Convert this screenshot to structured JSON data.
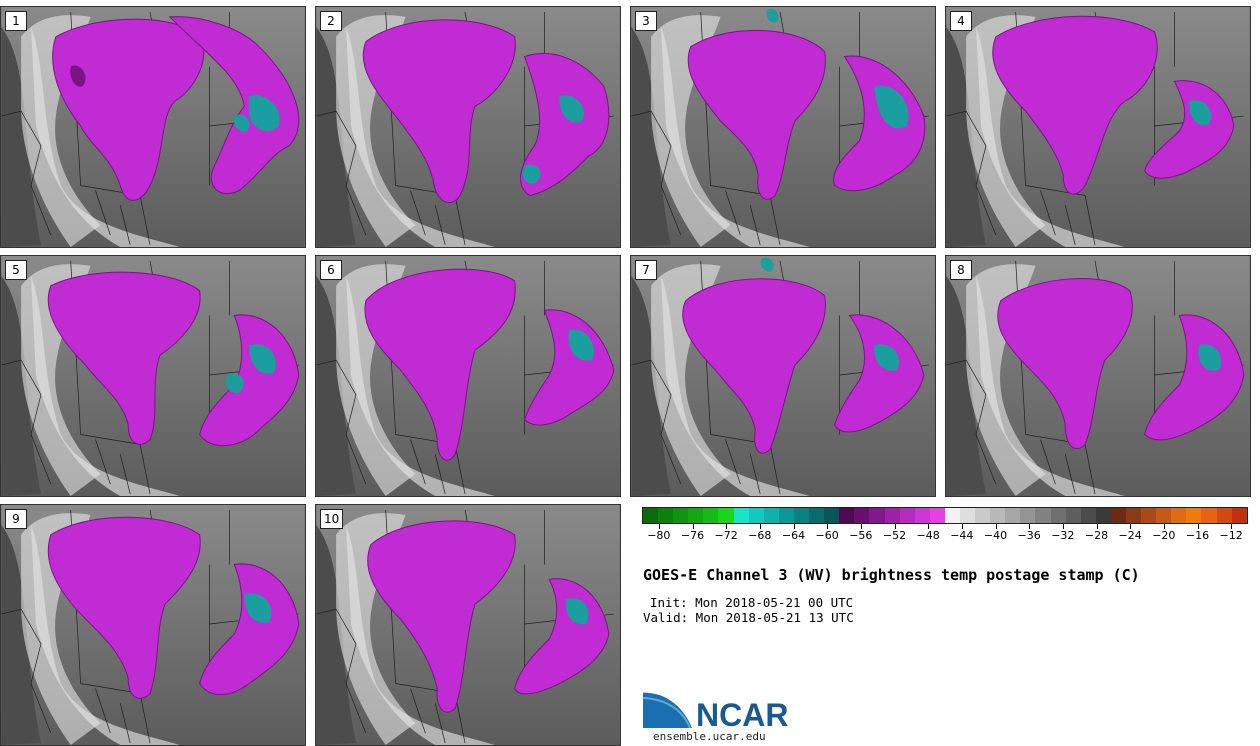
{
  "panels": [
    {
      "label": "1"
    },
    {
      "label": "2"
    },
    {
      "label": "3"
    },
    {
      "label": "4"
    },
    {
      "label": "5"
    },
    {
      "label": "6"
    },
    {
      "label": "7"
    },
    {
      "label": "8"
    },
    {
      "label": "9"
    },
    {
      "label": "10"
    }
  ],
  "colorbar": {
    "colors": [
      "#0b6b0b",
      "#0d7f0d",
      "#109310",
      "#13a713",
      "#17bb17",
      "#1ad51a",
      "#1ae3c8",
      "#14c7c0",
      "#10b0ae",
      "#0d9898",
      "#0a8282",
      "#086c6c",
      "#065858",
      "#4d0a52",
      "#68106e",
      "#82188a",
      "#9c22a6",
      "#b52cc0",
      "#cf36d6",
      "#e440e6",
      "#f2f2f2",
      "#dedede",
      "#cacaca",
      "#b8b8b8",
      "#a6a6a6",
      "#949494",
      "#828282",
      "#707070",
      "#5e5e5e",
      "#4c4c4c",
      "#3a3a3a",
      "#6a2a14",
      "#8a3a14",
      "#a94818",
      "#c45a18",
      "#de6c14",
      "#ee7a10",
      "#e86214",
      "#d44812",
      "#c03012"
    ],
    "tick_labels": [
      "−80",
      "−76",
      "−72",
      "−68",
      "−64",
      "−60",
      "−56",
      "−52",
      "−48",
      "−44",
      "−40",
      "−36",
      "−32",
      "−28",
      "−24",
      "−20",
      "−16",
      "−12"
    ],
    "tick_values": [
      -80,
      -76,
      -72,
      -68,
      -64,
      -60,
      -56,
      -52,
      -48,
      -44,
      -40,
      -36,
      -32,
      -28,
      -24,
      -20,
      -16,
      -12
    ],
    "min": -82,
    "max": -10
  },
  "title": "GOES-E Channel 3 (WV) brightness temp postage stamp (C)",
  "init": "Init: Mon 2018-05-21 00 UTC",
  "valid": "Valid: Mon 2018-05-21 13 UTC",
  "logo_text": "NCAR",
  "logo_url": "ensemble.ucar.edu",
  "colors": {
    "magenta": "#c12bd3",
    "dark_purple": "#7a1486",
    "teal": "#1a9e9e",
    "gray_bg": "#6e6e6e"
  }
}
